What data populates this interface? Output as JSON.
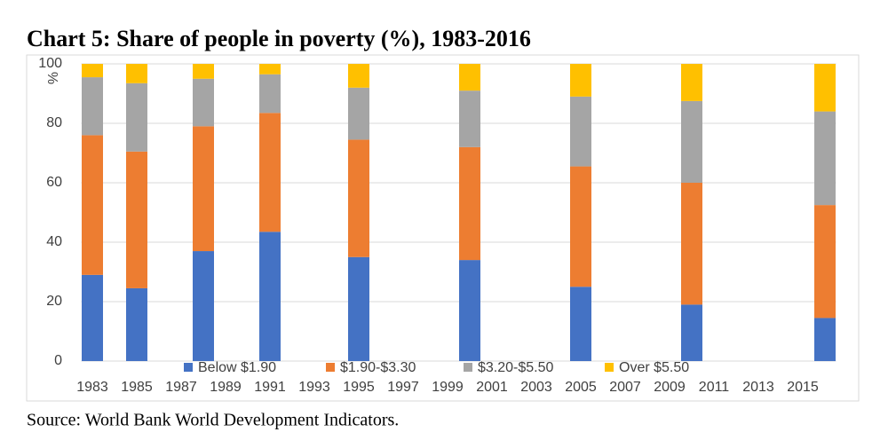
{
  "chart_data": {
    "type": "stacked-bar",
    "title": "Chart 5: Share of people in poverty (%), 1983-2016",
    "y_label": "%",
    "source": "Source: World Bank World Development Indicators.",
    "categories": [
      "1983",
      null,
      "1985",
      null,
      "1987",
      null,
      "1989",
      null,
      "1991",
      null,
      "1993",
      null,
      "1995",
      null,
      "1997",
      null,
      "1999",
      null,
      "2001",
      null,
      "2003",
      null,
      "2005",
      null,
      "2007",
      null,
      "2009",
      null,
      "2011",
      null,
      "2013",
      null,
      "2015",
      null
    ],
    "series": [
      {
        "name": "Below $1.90",
        "color": "#4472c4",
        "values": [
          29,
          null,
          24.5,
          null,
          null,
          37,
          null,
          null,
          43.5,
          null,
          null,
          null,
          35,
          null,
          null,
          null,
          null,
          34,
          null,
          null,
          null,
          null,
          25,
          null,
          null,
          null,
          null,
          19,
          null,
          null,
          null,
          null,
          null,
          14.5
        ]
      },
      {
        "name": "$1.90-$3.30",
        "color": "#ed7d31",
        "values": [
          47,
          null,
          46,
          null,
          null,
          42,
          null,
          null,
          40,
          null,
          null,
          null,
          39.5,
          null,
          null,
          null,
          null,
          38,
          null,
          null,
          null,
          null,
          40.5,
          null,
          null,
          null,
          null,
          41,
          null,
          null,
          null,
          null,
          null,
          38
        ]
      },
      {
        "name": "$3.20-$5.50",
        "color": "#a5a5a5",
        "values": [
          19.5,
          null,
          23,
          null,
          null,
          16,
          null,
          null,
          13,
          null,
          null,
          null,
          17.5,
          null,
          null,
          null,
          null,
          19,
          null,
          null,
          null,
          null,
          23.5,
          null,
          null,
          null,
          null,
          27.5,
          null,
          null,
          null,
          null,
          null,
          31.5
        ]
      },
      {
        "name": "Over $5.50",
        "color": "#ffc000",
        "values": [
          4.5,
          null,
          6.5,
          null,
          null,
          5,
          null,
          null,
          3.5,
          null,
          null,
          null,
          8,
          null,
          null,
          null,
          null,
          9,
          null,
          null,
          null,
          null,
          11,
          null,
          null,
          null,
          null,
          12.5,
          null,
          null,
          null,
          null,
          null,
          16
        ]
      }
    ],
    "ylim": [
      0,
      100
    ],
    "yticks": [
      0,
      20,
      40,
      60,
      80,
      100
    ],
    "grid": true,
    "legend": "bottom"
  }
}
